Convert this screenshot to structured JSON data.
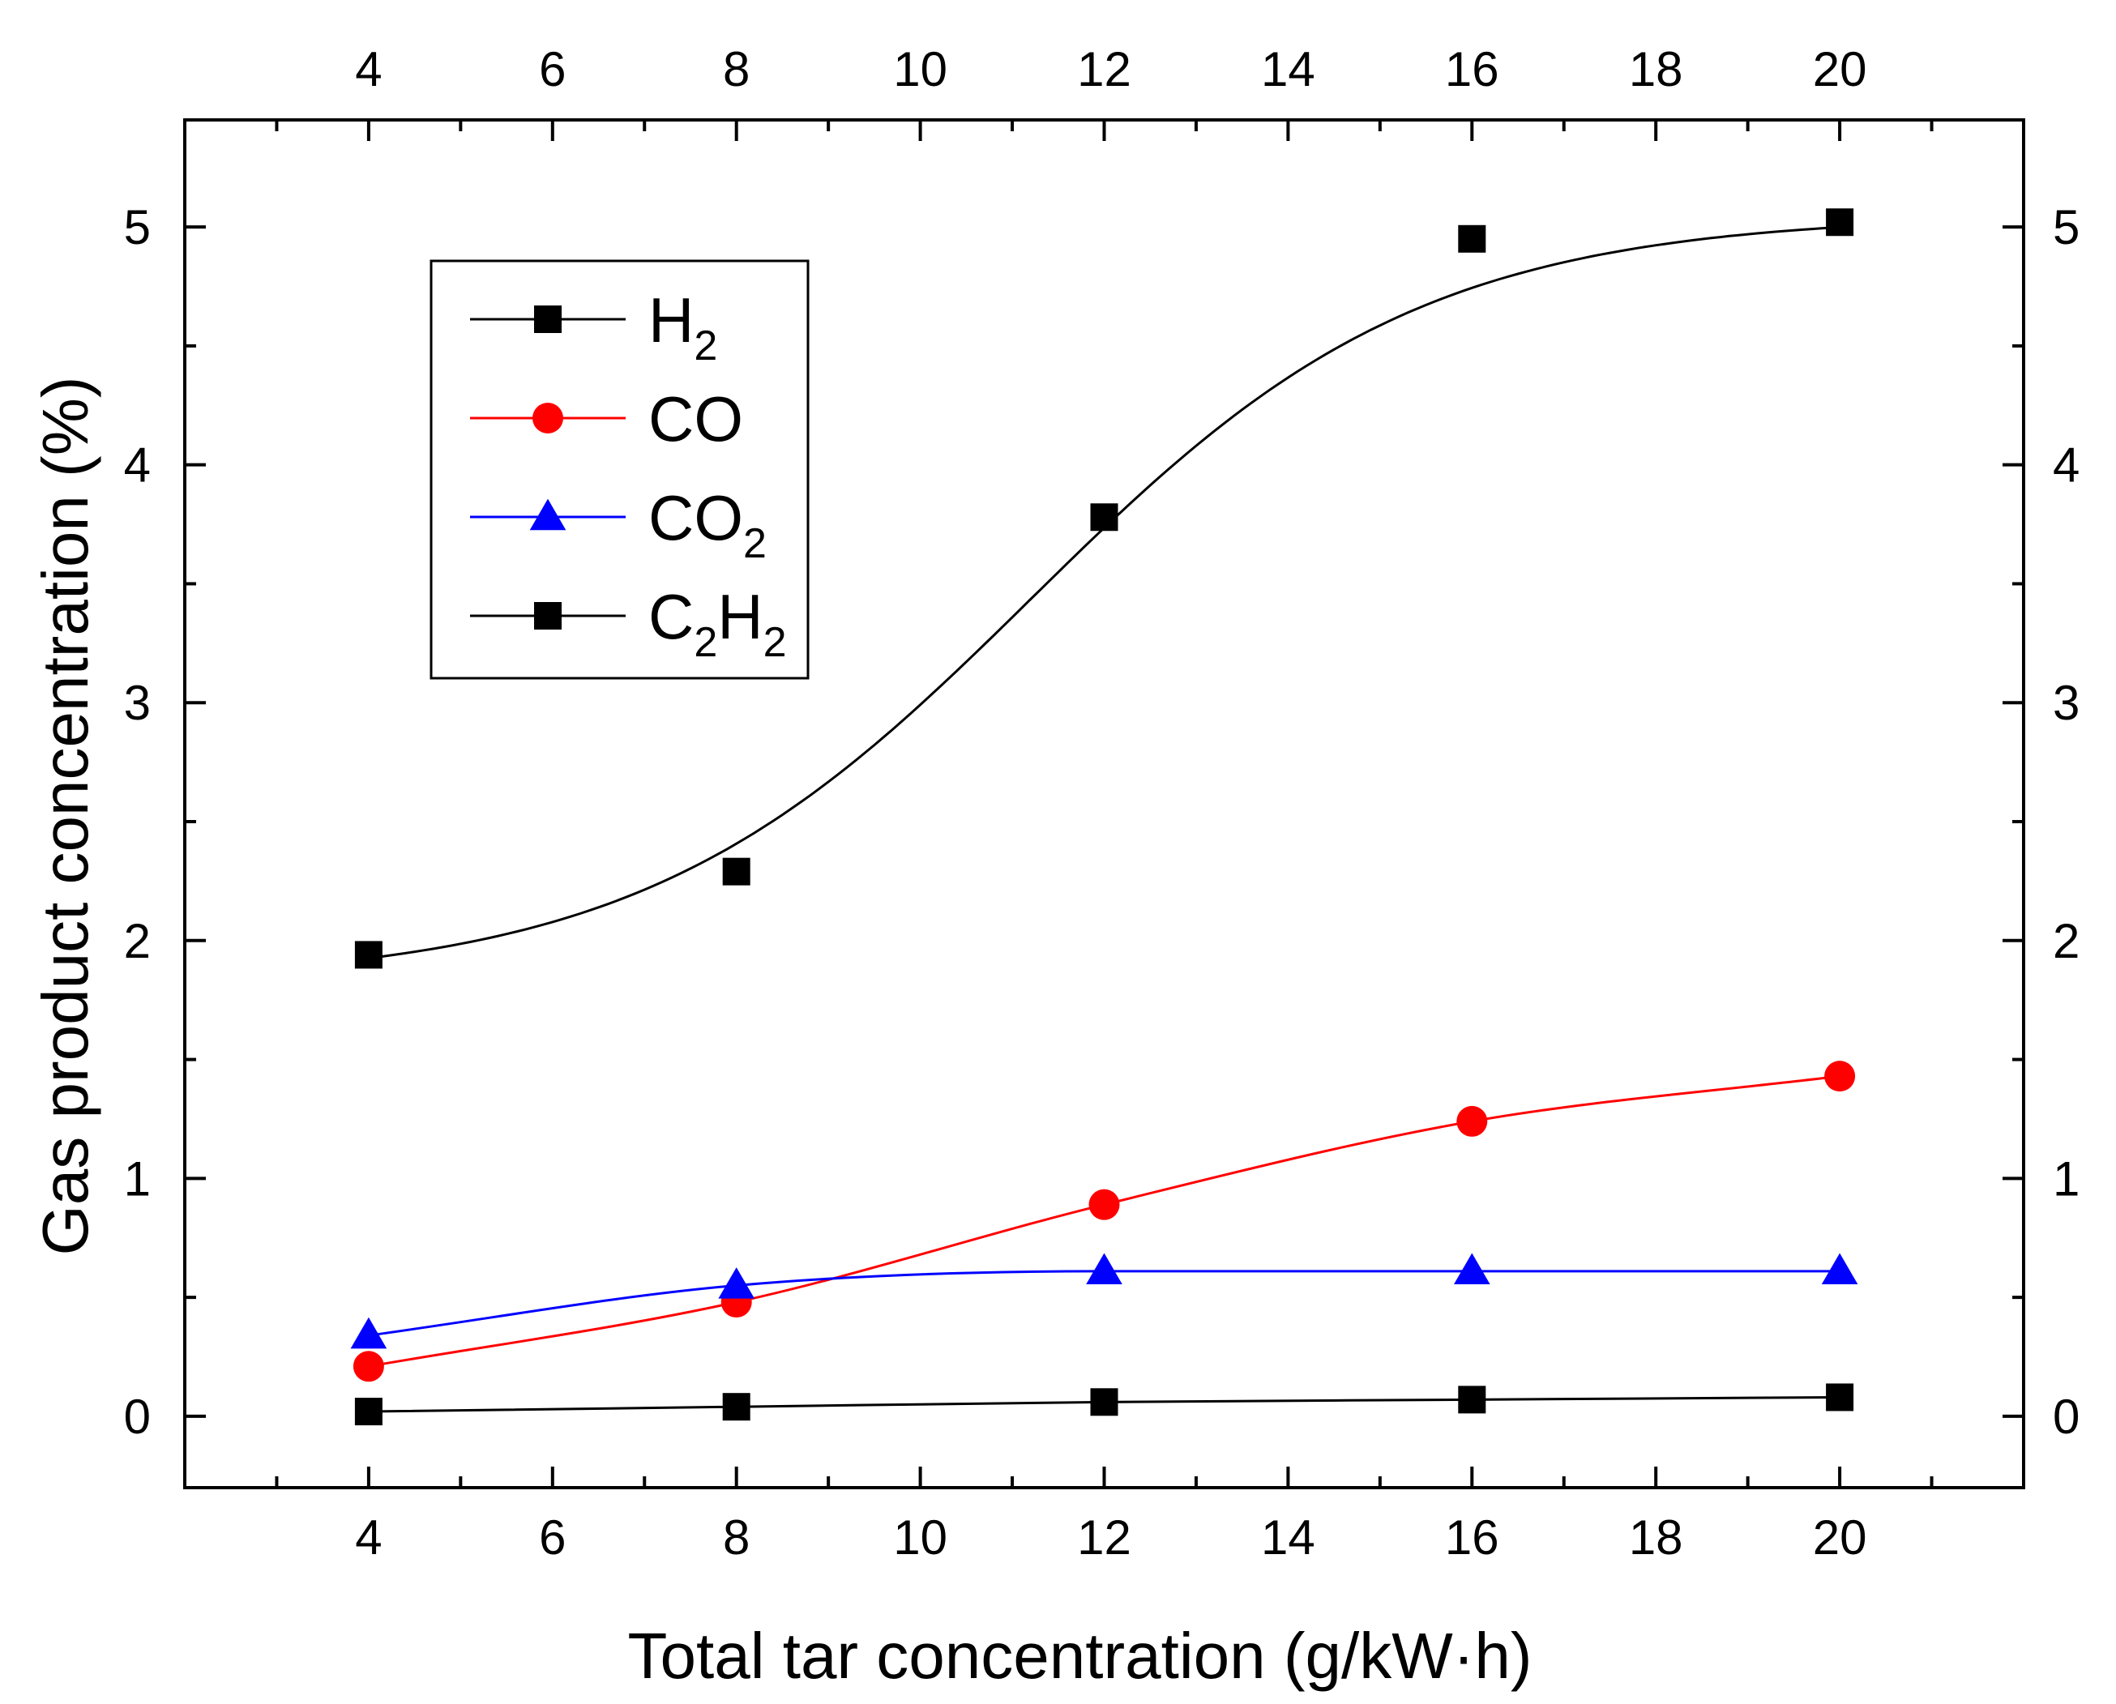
{
  "chart_data": {
    "type": "line",
    "xlabel": "Total tar concentration (g/kW·h)",
    "ylabel": "Gas product concentration (%)",
    "xlim": [
      2,
      22
    ],
    "ylim": [
      -0.3,
      5.45
    ],
    "x_ticks": [
      4,
      6,
      8,
      10,
      12,
      14,
      16,
      18,
      20
    ],
    "x_tick_labels": [
      "4",
      "6",
      "8",
      "10",
      "12",
      "14",
      "16",
      "18",
      "20"
    ],
    "y_ticks": [
      0,
      1,
      2,
      3,
      4,
      5
    ],
    "y_tick_labels": [
      "0",
      "1",
      "2",
      "3",
      "4",
      "5"
    ],
    "grid": false,
    "legend_position": "top-left",
    "x": [
      4,
      8,
      12,
      16,
      20
    ],
    "series": [
      {
        "name": "H2",
        "legend_main": "H",
        "legend_sub": "2",
        "legend_tail": "",
        "legend_tail_sub": "",
        "color": "#000000",
        "marker": "square",
        "values": [
          1.94,
          2.29,
          3.78,
          4.95,
          5.02
        ],
        "fit": "smooth"
      },
      {
        "name": "CO",
        "legend_main": "CO",
        "legend_sub": "",
        "legend_tail": "",
        "legend_tail_sub": "",
        "color": "#ff0000",
        "marker": "circle",
        "values": [
          0.21,
          0.48,
          0.89,
          1.24,
          1.43
        ],
        "fit": "smooth"
      },
      {
        "name": "CO2",
        "legend_main": "CO",
        "legend_sub": "2",
        "legend_tail": "",
        "legend_tail_sub": "",
        "color": "#0000ff",
        "marker": "triangle",
        "values": [
          0.34,
          0.55,
          0.61,
          0.61,
          0.61
        ],
        "fit": "smooth"
      },
      {
        "name": "C2H2",
        "legend_main": "C",
        "legend_sub": "2",
        "legend_tail": "H",
        "legend_tail_sub": "2",
        "color": "#000000",
        "marker": "square",
        "values": [
          0.02,
          0.04,
          0.06,
          0.07,
          0.08
        ],
        "fit": "smooth"
      }
    ]
  }
}
